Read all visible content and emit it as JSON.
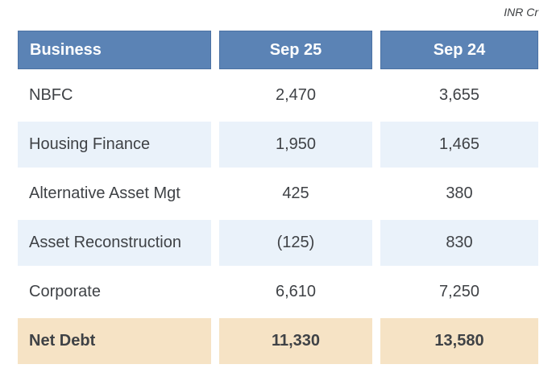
{
  "meta": {
    "unit_label": "INR Cr"
  },
  "colors": {
    "header_bg": "#5b83b5",
    "header_border": "#4c72a4",
    "header_text": "#ffffff",
    "alt_row_bg": "#eaf2fa",
    "total_row_bg": "#f6e3c5",
    "body_text": "#3f4246"
  },
  "table": {
    "columns": {
      "business": "Business",
      "sep25": "Sep 25",
      "sep24": "Sep 24"
    },
    "rows": [
      {
        "label": "NBFC",
        "sep25": "2,470",
        "sep24": "3,655"
      },
      {
        "label": "Housing Finance",
        "sep25": "1,950",
        "sep24": "1,465"
      },
      {
        "label": "Alternative Asset Mgt",
        "sep25": "425",
        "sep24": "380"
      },
      {
        "label": "Asset Reconstruction",
        "sep25": "(125)",
        "sep24": "830"
      },
      {
        "label": "Corporate",
        "sep25": "6,610",
        "sep24": "7,250"
      }
    ],
    "total_row": {
      "label": "Net Debt",
      "sep25": "11,330",
      "sep24": "13,580"
    }
  },
  "chart_data": {
    "type": "table",
    "title": "",
    "unit": "INR Cr",
    "columns": [
      "Business",
      "Sep 25",
      "Sep 24"
    ],
    "categories": [
      "NBFC",
      "Housing Finance",
      "Alternative Asset Mgt",
      "Asset Reconstruction",
      "Corporate",
      "Net Debt"
    ],
    "series": [
      {
        "name": "Sep 25",
        "values": [
          2470,
          1950,
          425,
          -125,
          6610,
          11330
        ]
      },
      {
        "name": "Sep 24",
        "values": [
          3655,
          1465,
          380,
          830,
          7250,
          13580
        ]
      }
    ],
    "notes": "Negative value shown in parentheses: Asset Reconstruction Sep 25 = (125). Net Debt row is the total row."
  }
}
